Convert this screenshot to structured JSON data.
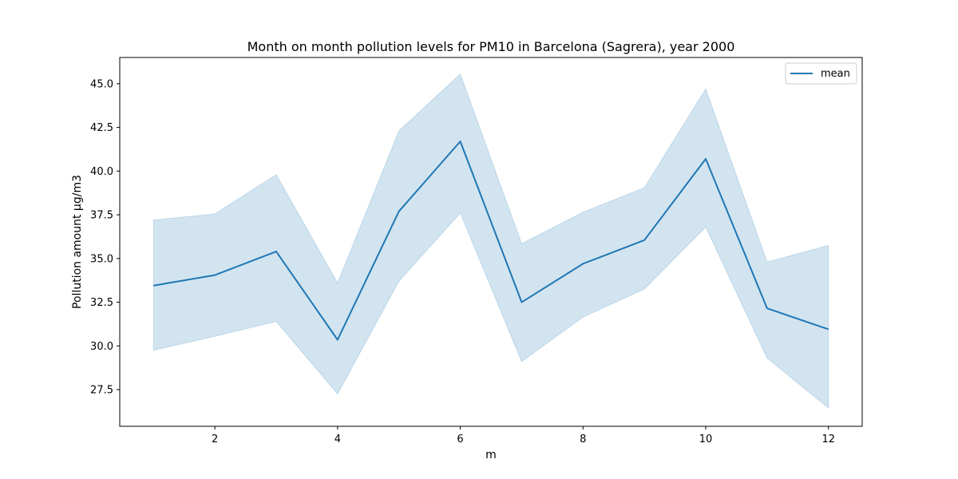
{
  "chart_data": {
    "type": "line",
    "title": "Month on month pollution levels for PM10 in Barcelona (Sagrera), year 2000",
    "xlabel": "m",
    "ylabel": "Pollution amount µg/m3",
    "x": [
      1,
      2,
      3,
      4,
      5,
      6,
      7,
      8,
      9,
      10,
      11,
      12
    ],
    "xticks": [
      2,
      4,
      6,
      8,
      10,
      12
    ],
    "xlim": [
      0.45,
      12.55
    ],
    "ylim": [
      25.4,
      46.5
    ],
    "yticks": [
      27.5,
      30.0,
      32.5,
      35.0,
      37.5,
      40.0,
      42.5,
      45.0
    ],
    "ytick_labels": [
      "27.5",
      "30.0",
      "32.5",
      "35.0",
      "37.5",
      "40.0",
      "42.5",
      "45.0"
    ],
    "series": [
      {
        "name": "mean",
        "color": "#1f77b4",
        "values": [
          33.45,
          34.05,
          35.4,
          30.35,
          37.7,
          41.7,
          32.5,
          34.7,
          36.05,
          40.7,
          32.15,
          30.95
        ],
        "band_lower": [
          29.75,
          30.55,
          31.4,
          27.25,
          33.7,
          37.6,
          29.1,
          31.65,
          33.25,
          36.8,
          29.3,
          26.45
        ],
        "band_upper": [
          37.2,
          37.55,
          39.8,
          33.6,
          42.3,
          45.55,
          35.85,
          37.65,
          39.05,
          44.7,
          34.8,
          35.75
        ],
        "band_color": "#1f77b4",
        "band_opacity": 0.2
      }
    ],
    "legend": {
      "position": "top-right",
      "entries": [
        "mean"
      ]
    },
    "grid": false
  }
}
